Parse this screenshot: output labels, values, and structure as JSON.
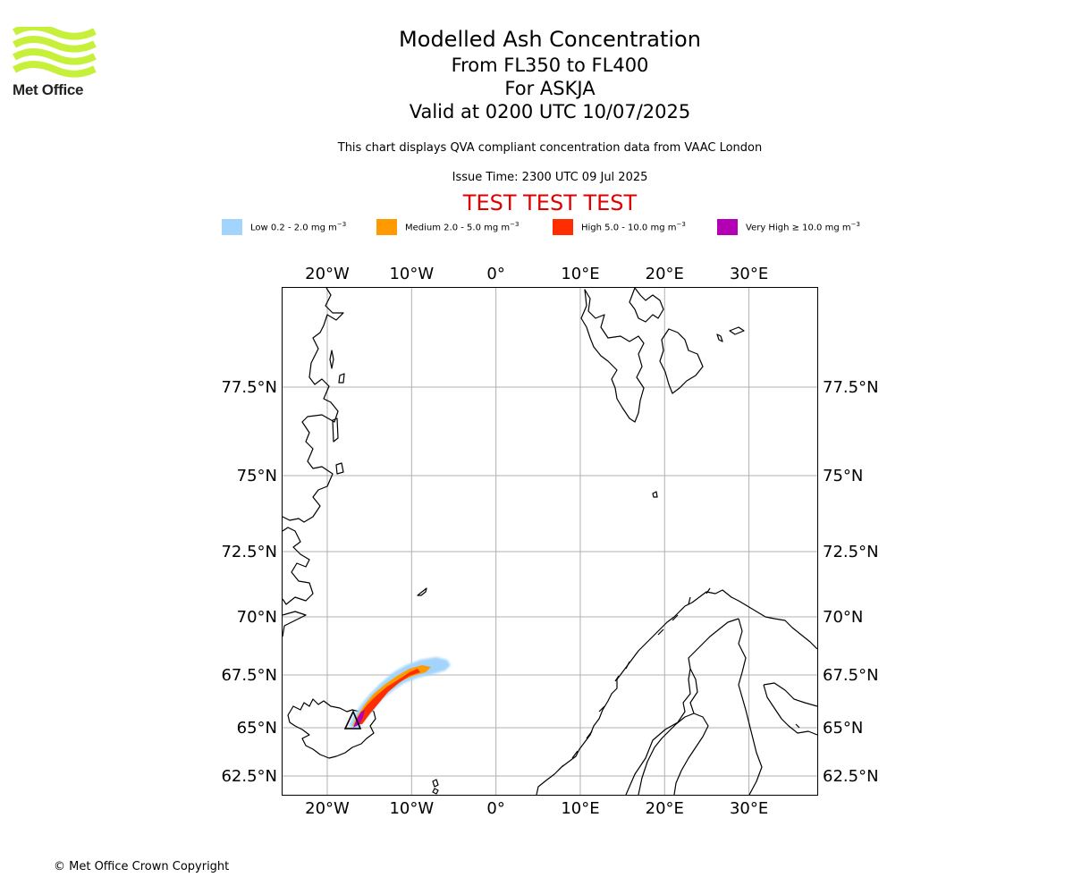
{
  "header": {
    "title": "Modelled Ash Concentration",
    "levels": "From FL350 to FL400",
    "volcano": "For ASKJA",
    "valid": "Valid at 0200 UTC 10/07/2025",
    "caption": "This chart displays QVA compliant concentration data from VAAC London",
    "issue_time": "Issue Time: 2300 UTC 09 Jul 2025",
    "test_banner": "TEST TEST TEST"
  },
  "logo": {
    "text": "Met Office",
    "color": "#c6f03a"
  },
  "legend": [
    {
      "label": "Low 0.2 - 2.0 mg m",
      "unit_exp": "−3",
      "color": "#a3d4fb"
    },
    {
      "label": "Medium 2.0 - 5.0 mg m",
      "unit_exp": "−3",
      "color": "#ff9b00"
    },
    {
      "label": "High 5.0 - 10.0 mg m",
      "unit_exp": "−3",
      "color": "#ff2e00"
    },
    {
      "label": "Very High ≥ 10.0 mg m",
      "unit_exp": "−3",
      "color": "#b400b4"
    }
  ],
  "map": {
    "lon_range": [
      -25.3,
      38.1
    ],
    "lat_range": [
      61.9,
      80.0
    ],
    "lon_ticks": [
      -20,
      -10,
      0,
      10,
      20,
      30
    ],
    "lon_labels": [
      "20°W",
      "10°W",
      "0°",
      "10°E",
      "20°E",
      "30°E"
    ],
    "lat_ticks": [
      62.5,
      65,
      67.5,
      70,
      72.5,
      75,
      77.5
    ],
    "lat_labels": [
      "62.5°N",
      "65°N",
      "67.5°N",
      "70°N",
      "72.5°N",
      "75°N",
      "77.5°N"
    ],
    "grid": true,
    "grid_color": "#b0b0b0",
    "volcano_marker": {
      "name": "ASKJA",
      "lon": -16.7,
      "lat": 65.0,
      "icon": "volcano-triangle-icon"
    }
  },
  "footer": {
    "copyright": "© Met Office Crown Copyright"
  }
}
